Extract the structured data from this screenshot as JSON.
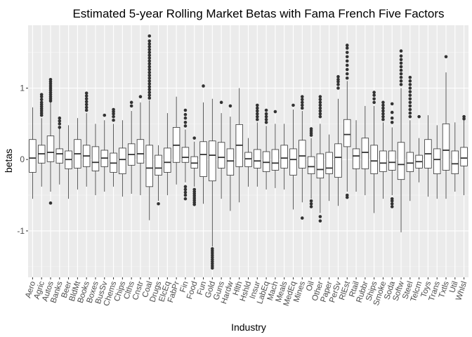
{
  "chart_data": {
    "type": "boxplot",
    "title": "Estimated 5-year Rolling Market Betas with Fama French Five Factors",
    "xlabel": "Industry",
    "ylabel": "betas",
    "ylim": [
      -1.65,
      1.88
    ],
    "yticks": [
      -1,
      0,
      1
    ],
    "grid": true,
    "categories": [
      "Aero",
      "Agric",
      "Autos",
      "Banks",
      "Beer",
      "BldMt",
      "Books",
      "Boxes",
      "BusSv",
      "Chems",
      "Chips",
      "Clths",
      "Cnstr",
      "Coal",
      "Drugs",
      "ElcEq",
      "FabPr",
      "Fin",
      "Food",
      "Fun",
      "Gold",
      "Guns",
      "Hardw",
      "Hlth",
      "Hshld",
      "Insur",
      "LabEq",
      "Mach",
      "Meals",
      "MedEq",
      "Mines",
      "Oil",
      "Other",
      "Paper",
      "PerSv",
      "RlEst",
      "Rtail",
      "Rubbr",
      "Ships",
      "Smoke",
      "Soda",
      "Softw",
      "Steel",
      "Telcm",
      "Toys",
      "Trans",
      "Txtls",
      "Util",
      "Whlsl"
    ],
    "boxes": [
      {
        "name": "Aero",
        "min": -0.55,
        "q1": -0.18,
        "median": 0.02,
        "q3": 0.28,
        "max": 0.73,
        "outliers": []
      },
      {
        "name": "Agric",
        "min": -0.38,
        "q1": -0.05,
        "median": 0.08,
        "q3": 0.2,
        "max": 0.58,
        "outliers": [
          0.62,
          0.65,
          0.68,
          0.71,
          0.74,
          0.77,
          0.8,
          0.84,
          0.88,
          0.91
        ]
      },
      {
        "name": "Autos",
        "min": -0.45,
        "q1": -0.03,
        "median": 0.1,
        "q3": 0.33,
        "max": 0.8,
        "outliers": [
          -0.61,
          0.82,
          0.85,
          0.88,
          0.91,
          0.94,
          0.97,
          1.0,
          1.03,
          1.06,
          1.09,
          1.12
        ]
      },
      {
        "name": "Banks",
        "min": -0.35,
        "q1": -0.05,
        "median": 0.08,
        "q3": 0.15,
        "max": 0.43,
        "outliers": [
          0.45,
          0.5,
          0.54,
          0.58
        ]
      },
      {
        "name": "Beer",
        "min": -0.55,
        "q1": -0.13,
        "median": 0.0,
        "q3": 0.12,
        "max": 0.48,
        "outliers": []
      },
      {
        "name": "BldMt",
        "min": -0.42,
        "q1": -0.12,
        "median": 0.08,
        "q3": 0.28,
        "max": 0.58,
        "outliers": []
      },
      {
        "name": "Books",
        "min": -0.38,
        "q1": -0.1,
        "median": 0.05,
        "q3": 0.2,
        "max": 0.65,
        "outliers": [
          0.69,
          0.73,
          0.77,
          0.81,
          0.85,
          0.89,
          0.93
        ]
      },
      {
        "name": "Boxes",
        "min": -0.5,
        "q1": -0.16,
        "median": -0.04,
        "q3": 0.18,
        "max": 0.5,
        "outliers": []
      },
      {
        "name": "BusSv",
        "min": -0.45,
        "q1": -0.1,
        "median": 0.02,
        "q3": 0.13,
        "max": 0.55,
        "outliers": [
          0.62
        ]
      },
      {
        "name": "Chems",
        "min": -0.38,
        "q1": -0.18,
        "median": -0.05,
        "q3": 0.09,
        "max": 0.5,
        "outliers": [
          0.55,
          0.6,
          0.64,
          0.67,
          0.7
        ]
      },
      {
        "name": "Chips",
        "min": -0.52,
        "q1": -0.2,
        "median": 0.0,
        "q3": 0.16,
        "max": 0.55,
        "outliers": []
      },
      {
        "name": "Clths",
        "min": -0.48,
        "q1": -0.08,
        "median": 0.07,
        "q3": 0.22,
        "max": 0.68,
        "outliers": [
          0.75,
          0.8
        ]
      },
      {
        "name": "Cnstr",
        "min": -0.5,
        "q1": -0.05,
        "median": 0.08,
        "q3": 0.28,
        "max": 0.8,
        "outliers": [
          0.88
        ]
      },
      {
        "name": "Coal",
        "min": -0.85,
        "q1": -0.38,
        "median": -0.12,
        "q3": 0.2,
        "max": 0.83,
        "outliers": [
          0.86,
          0.9,
          0.94,
          0.98,
          1.02,
          1.06,
          1.1,
          1.14,
          1.18,
          1.22,
          1.26,
          1.3,
          1.34,
          1.38,
          1.42,
          1.46,
          1.5,
          1.54,
          1.58,
          1.62,
          1.66,
          1.73
        ]
      },
      {
        "name": "Drugs",
        "min": -0.58,
        "q1": -0.22,
        "median": -0.12,
        "q3": 0.06,
        "max": 0.2,
        "outliers": [
          -0.62
        ]
      },
      {
        "name": "ElcEq",
        "min": -0.5,
        "q1": -0.18,
        "median": -0.04,
        "q3": 0.16,
        "max": 0.65,
        "outliers": []
      },
      {
        "name": "FabPr",
        "min": -0.35,
        "q1": -0.04,
        "median": 0.2,
        "q3": 0.45,
        "max": 0.88,
        "outliers": []
      },
      {
        "name": "Fin",
        "min": -0.32,
        "q1": -0.04,
        "median": 0.03,
        "q3": 0.17,
        "max": 0.42,
        "outliers": [
          -0.38,
          -0.42,
          -0.46,
          -0.5,
          -0.55,
          0.47,
          0.52,
          0.58,
          0.63,
          0.69
        ]
      },
      {
        "name": "Food",
        "min": -0.38,
        "q1": -0.12,
        "median": -0.05,
        "q3": 0.04,
        "max": 0.25,
        "outliers": [
          0.3,
          -0.42,
          -0.45,
          -0.48,
          -0.51,
          -0.54,
          -0.57,
          -0.6,
          -0.63
        ]
      },
      {
        "name": "Fun",
        "min": -0.62,
        "q1": -0.24,
        "median": 0.07,
        "q3": 0.25,
        "max": 0.8,
        "outliers": [
          1.03
        ]
      },
      {
        "name": "Gold",
        "min": -1.22,
        "q1": -0.3,
        "median": 0.06,
        "q3": 0.26,
        "max": 0.85,
        "outliers": [
          -1.25,
          -1.28,
          -1.31,
          -1.34,
          -1.37,
          -1.4,
          -1.43,
          -1.46,
          -1.49,
          -1.52
        ]
      },
      {
        "name": "Guns",
        "min": -0.55,
        "q1": -0.12,
        "median": 0.03,
        "q3": 0.24,
        "max": 0.65,
        "outliers": [
          0.8
        ]
      },
      {
        "name": "Hardw",
        "min": -0.72,
        "q1": -0.22,
        "median": -0.02,
        "q3": 0.15,
        "max": 0.6,
        "outliers": [
          0.75
        ]
      },
      {
        "name": "Hlth",
        "min": -0.6,
        "q1": -0.1,
        "median": 0.2,
        "q3": 0.49,
        "max": 1.0,
        "outliers": []
      },
      {
        "name": "Hshld",
        "min": -0.38,
        "q1": -0.1,
        "median": 0.01,
        "q3": 0.1,
        "max": 0.3,
        "outliers": []
      },
      {
        "name": "Insur",
        "min": -0.38,
        "q1": -0.12,
        "median": -0.02,
        "q3": 0.14,
        "max": 0.52,
        "outliers": [
          0.56,
          0.6,
          0.64,
          0.68,
          0.72,
          0.76
        ]
      },
      {
        "name": "LabEq",
        "min": -0.42,
        "q1": -0.17,
        "median": -0.04,
        "q3": 0.11,
        "max": 0.47,
        "outliers": [
          0.52,
          0.56,
          0.6,
          0.64,
          0.69
        ]
      },
      {
        "name": "Mach",
        "min": -0.4,
        "q1": -0.15,
        "median": -0.05,
        "q3": 0.14,
        "max": 0.5,
        "outliers": [
          0.67
        ]
      },
      {
        "name": "Meals",
        "min": -0.42,
        "q1": -0.12,
        "median": 0.02,
        "q3": 0.2,
        "max": 0.5,
        "outliers": []
      },
      {
        "name": "MedEq",
        "min": -0.7,
        "q1": -0.22,
        "median": 0.0,
        "q3": 0.15,
        "max": 0.7,
        "outliers": [
          0.76
        ]
      },
      {
        "name": "Mines",
        "min": -0.6,
        "q1": -0.12,
        "median": 0.05,
        "q3": 0.27,
        "max": 0.68,
        "outliers": [
          -0.82,
          0.72,
          0.76,
          0.8,
          0.84,
          0.88
        ]
      },
      {
        "name": "Oil",
        "min": -0.55,
        "q1": -0.2,
        "median": -0.1,
        "q3": 0.04,
        "max": 0.3,
        "outliers": [
          -0.58,
          -0.62,
          -0.66,
          0.34,
          0.37,
          0.4,
          0.43
        ]
      },
      {
        "name": "Other",
        "min": -0.75,
        "q1": -0.26,
        "median": -0.14,
        "q3": 0.08,
        "max": 0.5,
        "outliers": [
          -0.8,
          -0.86,
          0.6,
          0.64,
          0.68,
          0.72,
          0.76,
          0.8,
          0.84,
          0.88
        ]
      },
      {
        "name": "Paper",
        "min": -0.58,
        "q1": -0.2,
        "median": -0.12,
        "q3": 0.1,
        "max": 0.35,
        "outliers": []
      },
      {
        "name": "PerSv",
        "min": -0.65,
        "q1": -0.25,
        "median": 0.03,
        "q3": 0.22,
        "max": 0.85,
        "outliers": [
          1.0,
          1.05,
          1.09,
          1.12,
          1.16
        ]
      },
      {
        "name": "RlEst",
        "min": -0.45,
        "q1": 0.18,
        "median": 0.35,
        "q3": 0.56,
        "max": 1.1,
        "outliers": [
          -0.5,
          -0.53,
          1.14,
          1.2,
          1.26,
          1.32,
          1.38,
          1.44,
          1.5,
          1.56,
          1.6
        ]
      },
      {
        "name": "Rtail",
        "min": -0.45,
        "q1": -0.13,
        "median": 0.05,
        "q3": 0.15,
        "max": 0.55,
        "outliers": []
      },
      {
        "name": "Rubbr",
        "min": -0.5,
        "q1": -0.13,
        "median": 0.1,
        "q3": 0.3,
        "max": 0.75,
        "outliers": []
      },
      {
        "name": "Ships",
        "min": -0.75,
        "q1": -0.2,
        "median": -0.02,
        "q3": 0.2,
        "max": 0.75,
        "outliers": [
          0.8,
          0.85,
          0.9,
          0.94
        ]
      },
      {
        "name": "Smoke",
        "min": -0.55,
        "q1": -0.17,
        "median": -0.05,
        "q3": 0.12,
        "max": 0.52,
        "outliers": [
          0.56,
          0.6,
          0.64,
          0.68,
          0.72,
          0.76,
          0.8
        ]
      },
      {
        "name": "Soda",
        "min": -0.5,
        "q1": -0.15,
        "median": -0.04,
        "q3": 0.12,
        "max": 0.45,
        "outliers": [
          -0.55,
          -0.58,
          -0.62,
          -0.66,
          0.52,
          0.58,
          0.66,
          0.78
        ]
      },
      {
        "name": "Softw",
        "min": -1.02,
        "q1": -0.28,
        "median": -0.07,
        "q3": 0.24,
        "max": 1.0,
        "outliers": [
          1.05,
          1.1,
          1.15,
          1.2,
          1.25,
          1.3,
          1.35,
          1.4,
          1.45,
          1.52
        ]
      },
      {
        "name": "Steel",
        "min": -0.58,
        "q1": -0.17,
        "median": -0.05,
        "q3": 0.1,
        "max": 0.55,
        "outliers": [
          0.6,
          0.65,
          0.7,
          0.75,
          0.8,
          0.85,
          0.9,
          0.95,
          1.0,
          1.05,
          1.1,
          1.15
        ]
      },
      {
        "name": "Telcm",
        "min": -0.32,
        "q1": -0.12,
        "median": -0.03,
        "q3": 0.06,
        "max": 0.3,
        "outliers": [
          0.6
        ]
      },
      {
        "name": "Toys",
        "min": -0.52,
        "q1": -0.12,
        "median": 0.08,
        "q3": 0.28,
        "max": 0.62,
        "outliers": []
      },
      {
        "name": "Trans",
        "min": -0.55,
        "q1": -0.2,
        "median": 0.0,
        "q3": 0.15,
        "max": 0.48,
        "outliers": []
      },
      {
        "name": "Txtls",
        "min": -0.55,
        "q1": -0.15,
        "median": 0.13,
        "q3": 0.5,
        "max": 1.22,
        "outliers": [
          1.44
        ]
      },
      {
        "name": "Util",
        "min": -0.45,
        "q1": -0.2,
        "median": -0.06,
        "q3": 0.12,
        "max": 0.52,
        "outliers": []
      },
      {
        "name": "Whlsl",
        "min": -0.5,
        "q1": -0.09,
        "median": 0.02,
        "q3": 0.17,
        "max": 0.55,
        "outliers": [
          0.57,
          0.6
        ]
      }
    ]
  }
}
